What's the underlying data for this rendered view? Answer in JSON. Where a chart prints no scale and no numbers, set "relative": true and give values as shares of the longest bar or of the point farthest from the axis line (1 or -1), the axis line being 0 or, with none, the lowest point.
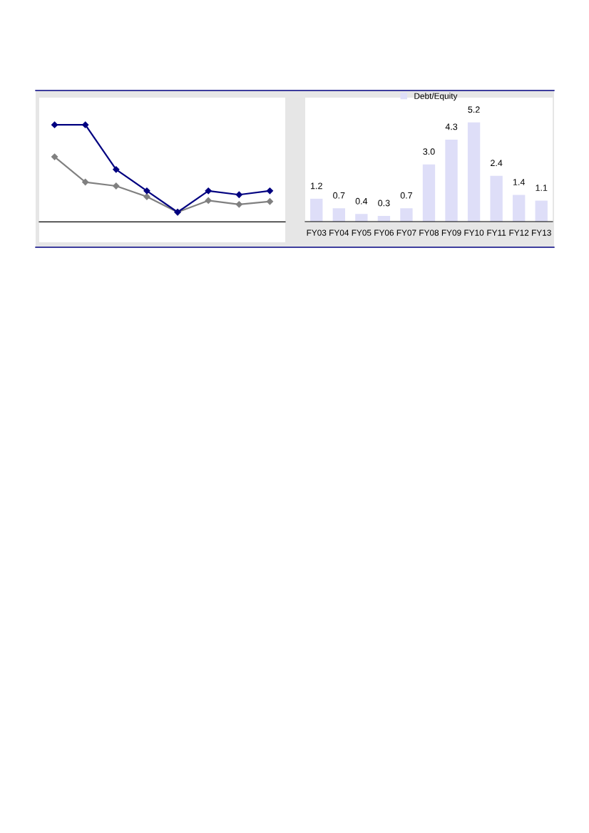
{
  "chart_data": [
    {
      "type": "line",
      "relative": true,
      "categories": [
        null,
        null,
        null,
        null,
        null,
        null,
        null,
        null
      ],
      "marker": "diamond",
      "tick_labels": false,
      "series": [
        {
          "color": "#808080",
          "values": [
            0.67,
            0.41,
            0.37,
            0.26,
            0.1,
            0.22,
            0.18,
            0.21
          ]
        },
        {
          "color": "#000080",
          "values": [
            1,
            1,
            0.54,
            0.32,
            0.1,
            0.32,
            0.28,
            0.32
          ]
        }
      ]
    },
    {
      "type": "bar",
      "categories": [
        "FY03",
        "FY04",
        "FY05",
        "FY06",
        "FY07",
        "FY08",
        "FY09",
        "FY10",
        "FY11",
        "FY12",
        "FY13"
      ],
      "tick_labels": "x",
      "legend": "top",
      "series": [
        {
          "name": "Debt/Equity",
          "color": "#dedef8",
          "values": [
            1.2,
            0.7,
            0.4,
            0.3,
            0.7,
            3.0,
            4.3,
            5.2,
            2.4,
            1.4,
            1.1
          ],
          "value_labels": [
            "1.2",
            "0.7",
            "0.4",
            "0.3",
            "0.7",
            "3.0",
            "4.3",
            "5.2",
            "2.4",
            "1.4",
            "1.1"
          ]
        }
      ]
    }
  ]
}
